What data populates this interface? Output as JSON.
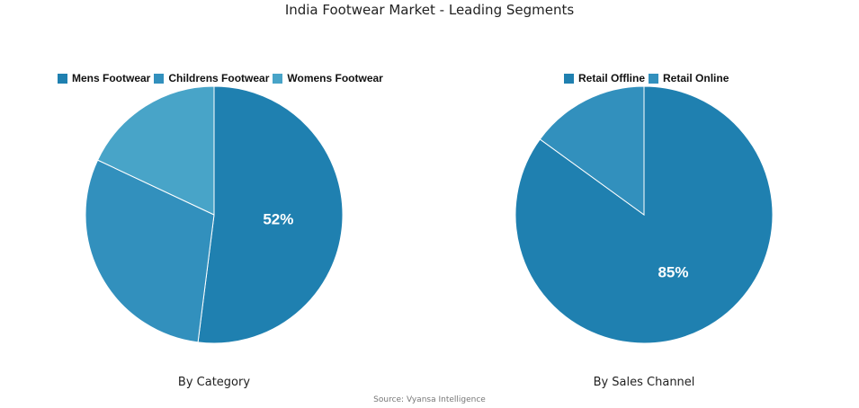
{
  "title": "India Footwear Market - Leading Segments",
  "source": "Source: Vyansa Intelligence",
  "chart_data": [
    {
      "type": "pie",
      "caption": "By Category",
      "labels": [
        "Mens Footwear",
        "Childrens Footwear",
        "Womens Footwear"
      ],
      "values": [
        52,
        30,
        18
      ],
      "colors": [
        "#1f80b0",
        "#3290bd",
        "#48a4c8"
      ],
      "data_labels": [
        "52%",
        "",
        ""
      ],
      "legend_position": "top"
    },
    {
      "type": "pie",
      "caption": "By Sales Channel",
      "labels": [
        "Retail Offline",
        "Retail Online"
      ],
      "values": [
        85,
        15
      ],
      "colors": [
        "#1f80b0",
        "#3290bd"
      ],
      "data_labels": [
        "85%",
        ""
      ],
      "legend_position": "top"
    }
  ]
}
